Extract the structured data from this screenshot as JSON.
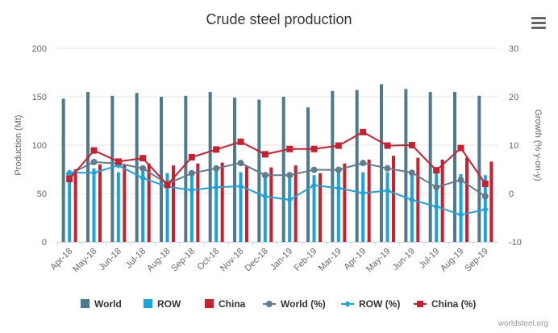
{
  "menu": {
    "icon": "hamburger-menu-icon"
  },
  "credit": "worldsteel.org",
  "chart_data": {
    "type": "bar",
    "title": "Crude steel production",
    "categories": [
      "Apr-18",
      "May-18",
      "Jun-18",
      "Jul-18",
      "Aug-18",
      "Sep-18",
      "Oct-18",
      "Nov-18",
      "Dec-18",
      "Jan-19",
      "Feb-19",
      "Mar-19",
      "Apr-19",
      "May-19",
      "Jun-19",
      "Jul-19",
      "Aug-19",
      "Sep-19"
    ],
    "y_left": {
      "label": "Production (Mt)",
      "range": [
        0,
        200
      ],
      "ticks": [
        0,
        50,
        100,
        150,
        200
      ]
    },
    "y_right": {
      "label": "Growth (% y-on-y)",
      "range": [
        -10,
        30
      ],
      "ticks": [
        -10,
        0,
        10,
        20,
        30
      ]
    },
    "grid": true,
    "legend_position": "bottom",
    "bar_series": [
      {
        "name": "World",
        "color": "#4f7a8c",
        "axis": "left",
        "values": [
          148,
          155,
          151,
          154,
          150,
          151,
          155,
          149,
          147,
          150,
          139,
          156,
          157,
          163,
          158,
          155,
          155,
          151
        ]
      },
      {
        "name": "ROW",
        "color": "#1ba3dc",
        "axis": "left",
        "values": [
          74,
          76,
          72,
          73,
          71,
          70,
          74,
          72,
          71,
          71,
          69,
          72,
          72,
          72,
          73,
          72,
          70,
          69
        ]
      },
      {
        "name": "China",
        "color": "#c8202e",
        "axis": "left",
        "values": [
          75,
          80,
          79,
          81,
          79,
          81,
          82,
          78,
          77,
          79,
          71,
          81,
          85,
          89,
          87,
          85,
          87,
          83
        ]
      }
    ],
    "line_series": [
      {
        "name": "World (%)",
        "color": "#5f7d8a",
        "marker": "circle",
        "axis": "right",
        "values": [
          4.0,
          6.5,
          6.2,
          5.2,
          2.0,
          4.2,
          5.2,
          6.3,
          3.8,
          3.8,
          4.9,
          4.9,
          6.3,
          5.2,
          4.3,
          1.3,
          2.8,
          -0.6
        ]
      },
      {
        "name": "ROW (%)",
        "color": "#1ba3dc",
        "marker": "diamond",
        "axis": "right",
        "values": [
          4.3,
          4.3,
          5.8,
          3.2,
          1.4,
          0.7,
          1.3,
          1.5,
          -0.6,
          -1.3,
          1.7,
          1.1,
          0.1,
          0.6,
          -1.3,
          -2.7,
          -4.4,
          -3.3
        ]
      },
      {
        "name": "China (%)",
        "color": "#c8202e",
        "marker": "square",
        "axis": "right",
        "values": [
          3.0,
          8.9,
          6.6,
          7.3,
          1.8,
          7.5,
          9.1,
          10.7,
          8.1,
          9.2,
          9.2,
          9.9,
          12.7,
          9.9,
          10.0,
          4.8,
          9.4,
          2.0
        ]
      }
    ]
  }
}
